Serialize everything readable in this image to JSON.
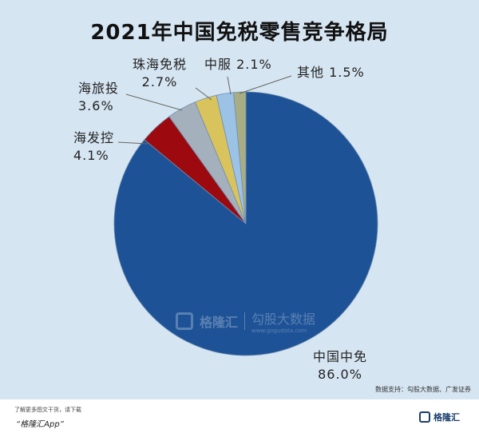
{
  "chart_data": {
    "type": "pie",
    "title": "2021年中国免税零售竞争格局",
    "slices": [
      {
        "label": "中国中免",
        "value_text": "86.0%",
        "value": 86.0,
        "color": "#1e5296"
      },
      {
        "label": "海发控",
        "value_text": "4.1%",
        "value": 4.1,
        "color": "#9c0a0f"
      },
      {
        "label": "海旅投",
        "value_text": "3.6%",
        "value": 3.6,
        "color": "#a4b0bb"
      },
      {
        "label": "珠海免税",
        "value_text": "2.7%",
        "value": 2.7,
        "color": "#d9c35c"
      },
      {
        "label": "中服",
        "value_text": "2.1%",
        "value": 2.1,
        "color": "#9cc2e6"
      },
      {
        "label": "其他",
        "value_text": "1.5%",
        "value": 1.5,
        "color": "#a8ad84"
      }
    ],
    "start": "12 o'clock",
    "direction": "counterclockwise for small slices, main slice clockwise"
  },
  "source_text": "数据支持：勾股大数据、广发证券",
  "watermark": {
    "brand": "格隆汇",
    "partner": "勾股大数据",
    "url": "www.gogudata.com"
  },
  "footer": {
    "line1": "了解更多图文干货，请下载",
    "line2": "“格隆汇App”",
    "logo_text": "格隆汇"
  }
}
